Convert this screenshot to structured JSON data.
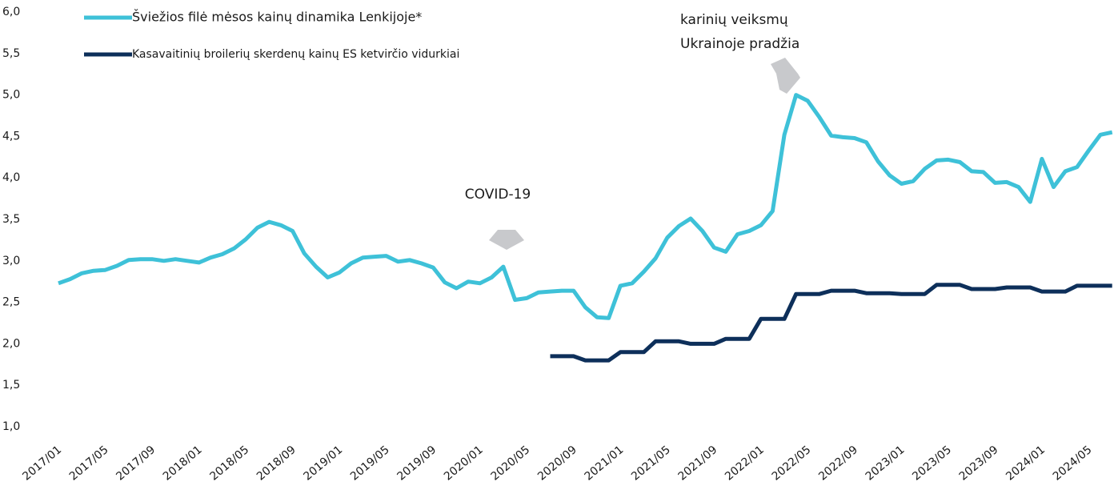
{
  "chart_data": {
    "type": "line",
    "categories": [
      "2017/01",
      null,
      null,
      null,
      "2017/05",
      null,
      null,
      null,
      "2017/09",
      null,
      null,
      null,
      "2018/01",
      null,
      null,
      null,
      "2018/05",
      null,
      null,
      null,
      "2018/09",
      null,
      null,
      null,
      "2019/01",
      null,
      null,
      null,
      "2019/05",
      null,
      null,
      null,
      "2019/09",
      null,
      null,
      null,
      "2020/01",
      null,
      null,
      null,
      "2020/05",
      null,
      null,
      null,
      "2020/09",
      null,
      null,
      null,
      "2021/01",
      null,
      null,
      null,
      "2021/05",
      null,
      null,
      null,
      "2021/09",
      null,
      null,
      null,
      "2022/01",
      null,
      null,
      null,
      "2022/05",
      null,
      null,
      null,
      "2022/09",
      null,
      null,
      null,
      "2023/01",
      null,
      null,
      null,
      "2023/05",
      null,
      null,
      null,
      "2023/09",
      null,
      null,
      null,
      "2024/01",
      null,
      null,
      null,
      "2024/05",
      null,
      null
    ],
    "series": [
      {
        "name": "Šviežios filė mėsos kainų dinamika Lenkijoje*",
        "color": "#3ec1d8",
        "values": [
          2.73,
          2.78,
          2.85,
          2.88,
          2.89,
          2.94,
          3.01,
          3.02,
          3.02,
          3.0,
          3.02,
          3.0,
          2.98,
          3.04,
          3.08,
          3.15,
          3.26,
          3.4,
          3.47,
          3.43,
          3.36,
          3.09,
          2.93,
          2.8,
          2.86,
          2.97,
          3.04,
          3.05,
          3.06,
          2.99,
          3.01,
          2.97,
          2.92,
          2.74,
          2.67,
          2.75,
          2.73,
          2.8,
          2.93,
          2.53,
          2.55,
          2.62,
          2.63,
          2.64,
          2.64,
          2.44,
          2.32,
          2.31,
          2.7,
          2.73,
          2.87,
          3.03,
          3.28,
          3.42,
          3.51,
          3.36,
          3.16,
          3.11,
          3.32,
          3.36,
          3.43,
          3.6,
          4.52,
          5.0,
          4.93,
          4.73,
          4.51,
          4.49,
          4.48,
          4.43,
          4.2,
          4.03,
          3.93,
          3.96,
          4.11,
          4.21,
          4.22,
          4.19,
          4.08,
          4.07,
          3.94,
          3.95,
          3.89,
          3.71,
          4.23,
          3.89,
          4.08,
          4.13,
          4.33,
          4.52,
          4.55
        ]
      },
      {
        "name": "Kasavaitinių broilerių skerdenų kainų ES ketvirčio vidurkiai",
        "color": "#0d2f5a",
        "values": [
          null,
          null,
          null,
          null,
          null,
          null,
          null,
          null,
          null,
          null,
          null,
          null,
          null,
          null,
          null,
          null,
          null,
          null,
          null,
          null,
          null,
          null,
          null,
          null,
          null,
          null,
          null,
          null,
          null,
          null,
          null,
          null,
          null,
          null,
          null,
          null,
          null,
          null,
          null,
          null,
          null,
          null,
          1.85,
          1.85,
          1.85,
          1.8,
          1.8,
          1.8,
          1.9,
          1.9,
          1.9,
          2.03,
          2.03,
          2.03,
          2.0,
          2.0,
          2.0,
          2.06,
          2.06,
          2.06,
          2.3,
          2.3,
          2.3,
          2.6,
          2.6,
          2.6,
          2.64,
          2.64,
          2.64,
          2.61,
          2.61,
          2.61,
          2.6,
          2.6,
          2.6,
          2.71,
          2.71,
          2.71,
          2.66,
          2.66,
          2.66,
          2.68,
          2.68,
          2.68,
          2.63,
          2.63,
          2.63,
          2.7,
          2.7,
          2.7,
          2.7
        ]
      }
    ],
    "ylim": [
      1,
      6
    ],
    "yticks": [
      {
        "value": 1,
        "label": "1,0"
      },
      {
        "value": 1.5,
        "label": "1,5"
      },
      {
        "value": 2,
        "label": "2,0"
      },
      {
        "value": 2.5,
        "label": "2,5"
      },
      {
        "value": 3,
        "label": "3,0"
      },
      {
        "value": 3.5,
        "label": "3,5"
      },
      {
        "value": 4,
        "label": "4,0"
      },
      {
        "value": 4.5,
        "label": "4,5"
      },
      {
        "value": 5,
        "label": "5,0"
      },
      {
        "value": 5.5,
        "label": "5,5"
      },
      {
        "value": 6,
        "label": "6,0"
      }
    ],
    "grid": false,
    "legend": "top-left",
    "annotations": [
      {
        "lines": [
          "COVID-19"
        ]
      },
      {
        "lines": [
          "karinių veiksmų",
          "Ukrainoje pradžia"
        ]
      }
    ]
  }
}
